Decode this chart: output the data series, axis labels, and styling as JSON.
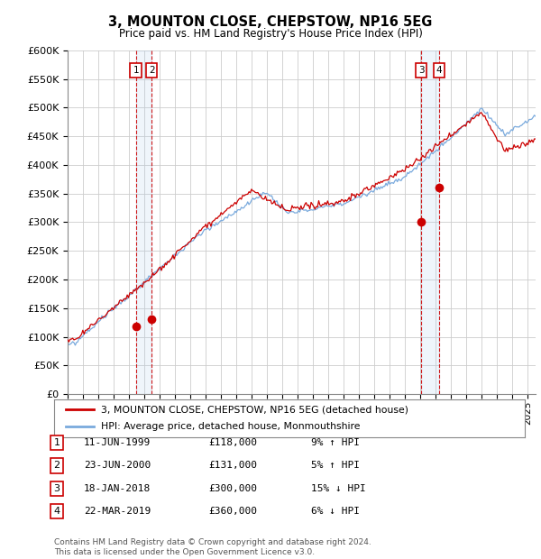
{
  "title": "3, MOUNTON CLOSE, CHEPSTOW, NP16 5EG",
  "subtitle": "Price paid vs. HM Land Registry's House Price Index (HPI)",
  "ylabel_ticks": [
    "£0",
    "£50K",
    "£100K",
    "£150K",
    "£200K",
    "£250K",
    "£300K",
    "£350K",
    "£400K",
    "£450K",
    "£500K",
    "£550K",
    "£600K"
  ],
  "ylim": [
    0,
    600000
  ],
  "ytick_vals": [
    0,
    50000,
    100000,
    150000,
    200000,
    250000,
    300000,
    350000,
    400000,
    450000,
    500000,
    550000,
    600000
  ],
  "sale_color": "#cc0000",
  "hpi_color": "#7aaadd",
  "vline_color_solid": "#cc0000",
  "vline_color_dashed": "#cc0000",
  "shade_color": "#aaccee",
  "transactions": [
    {
      "num": 1,
      "date_x": 1999.45,
      "price": 118000,
      "label": "1"
    },
    {
      "num": 2,
      "date_x": 2000.48,
      "price": 131000,
      "label": "2"
    },
    {
      "num": 3,
      "date_x": 2018.05,
      "price": 300000,
      "label": "3"
    },
    {
      "num": 4,
      "date_x": 2019.22,
      "price": 360000,
      "label": "4"
    }
  ],
  "legend_sale_label": "3, MOUNTON CLOSE, CHEPSTOW, NP16 5EG (detached house)",
  "legend_hpi_label": "HPI: Average price, detached house, Monmouthshire",
  "table_rows": [
    {
      "num": "1",
      "date": "11-JUN-1999",
      "price": "£118,000",
      "pct": "9% ↑ HPI"
    },
    {
      "num": "2",
      "date": "23-JUN-2000",
      "price": "£131,000",
      "pct": "5% ↑ HPI"
    },
    {
      "num": "3",
      "date": "18-JAN-2018",
      "price": "£300,000",
      "pct": "15% ↓ HPI"
    },
    {
      "num": "4",
      "date": "22-MAR-2019",
      "price": "£360,000",
      "pct": "6% ↓ HPI"
    }
  ],
  "footer": "Contains HM Land Registry data © Crown copyright and database right 2024.\nThis data is licensed under the Open Government Licence v3.0.",
  "background_color": "#ffffff",
  "grid_color": "#cccccc",
  "xmin": 1995.0,
  "xmax": 2025.5,
  "figsize": [
    6.0,
    6.2
  ],
  "dpi": 100
}
